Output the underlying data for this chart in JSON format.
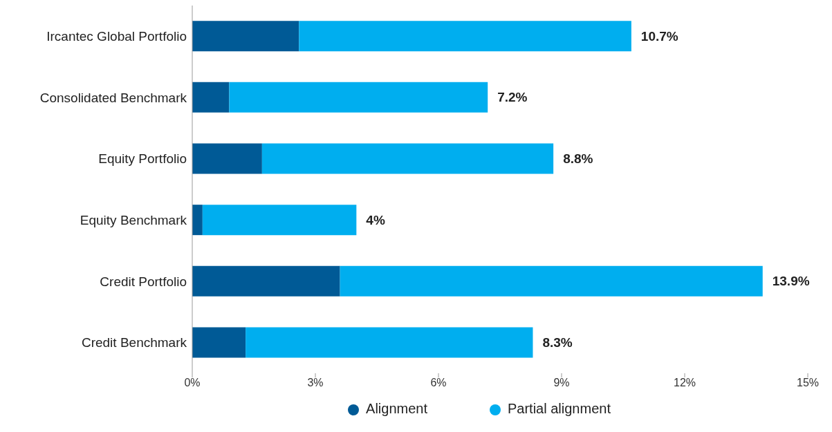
{
  "chart_data": {
    "type": "bar",
    "orientation": "horizontal",
    "stacked": true,
    "categories": [
      "Ircantec Global Portfolio",
      "Consolidated Benchmark",
      "Equity Portfolio",
      "Equity Benchmark",
      "Credit Portfolio",
      "Credit Benchmark"
    ],
    "series": [
      {
        "name": "Alignment",
        "color": "#005a96",
        "values": [
          2.6,
          0.9,
          1.7,
          0.25,
          3.6,
          1.3
        ]
      },
      {
        "name": "Partial alignment",
        "color": "#00aeef",
        "values": [
          8.1,
          6.3,
          7.1,
          3.75,
          10.3,
          7.0
        ]
      }
    ],
    "totals": [
      "10.7%",
      "7.2%",
      "8.8%",
      "4%",
      "13.9%",
      "8.3%"
    ],
    "xlim": [
      0,
      15
    ],
    "xticks": [
      {
        "value": 0,
        "label": "0%"
      },
      {
        "value": 3,
        "label": "3%"
      },
      {
        "value": 6,
        "label": "6%"
      },
      {
        "value": 9,
        "label": "9%"
      },
      {
        "value": 12,
        "label": "12%"
      },
      {
        "value": 15,
        "label": "15%"
      }
    ],
    "grid": false,
    "legend": "bottom",
    "marker": "circle"
  }
}
